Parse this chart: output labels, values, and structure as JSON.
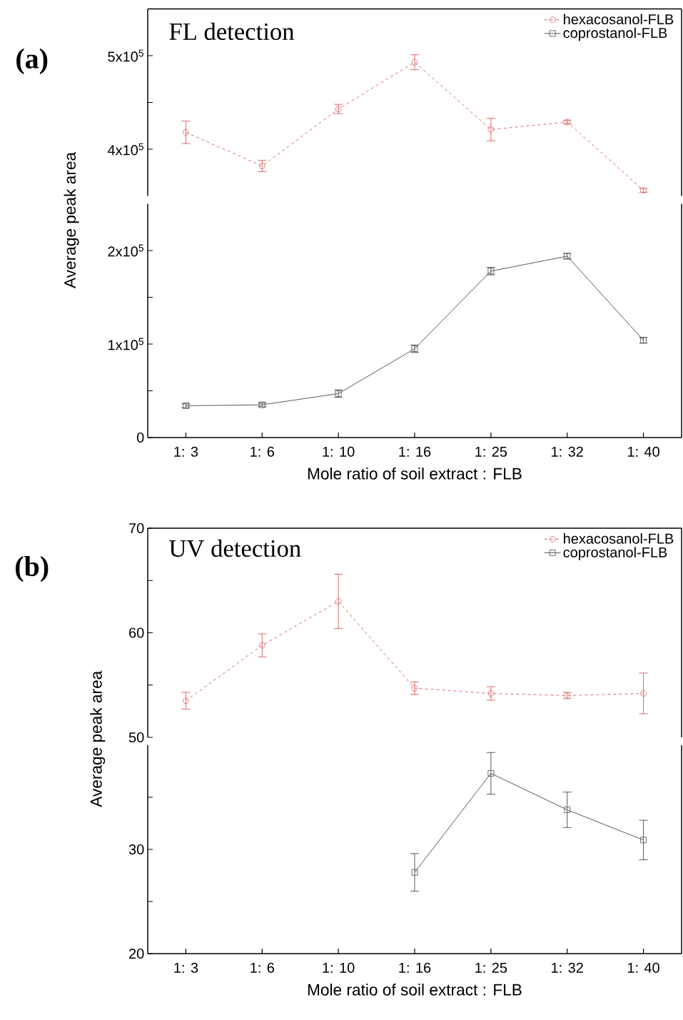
{
  "chart_data": [
    {
      "type": "line",
      "title": "FL detection",
      "annotations": [
        "(a)"
      ],
      "categories": [
        null,
        null,
        null,
        null,
        null,
        null,
        null
      ],
      "tick_labels": "y",
      "legend": "top right",
      "ylim": [
        350000,
        550000
      ],
      "yticks": [
        {
          "value": 400000,
          "label": "4x10$^{5}$"
        },
        {
          "value": 450000,
          "label": null
        },
        {
          "value": 500000,
          "label": "5x10$^{5}$"
        }
      ],
      "series": [
        {
          "name": "hexacosanol-FLB",
          "color": "#d96060",
          "marker": "circle",
          "line_style": "dashed",
          "values": [
            418000,
            382000,
            443000,
            493000,
            421000,
            429000,
            356000
          ],
          "errors": [
            12000,
            6000,
            5000,
            8000,
            12000,
            2000,
            2000
          ]
        },
        {
          "name": "coprostanol-FLB",
          "color": "#4d4d4d",
          "marker": "square",
          "line_style": "solid",
          "values": [
            null,
            null,
            null,
            null,
            null,
            null,
            null
          ]
        }
      ]
    },
    {
      "type": "line",
      "xlabel": "Mole ratio of soil extract : FLB",
      "ylabel": "Average peak area",
      "categories": [
        "1: 3",
        "1: 6",
        "1: 10",
        "1: 16",
        "1: 25",
        "1: 32",
        "1: 40"
      ],
      "ylim": [
        0,
        250000
      ],
      "yticks": [
        0,
        {
          "value": 50000,
          "label": null
        },
        {
          "value": 100000,
          "label": "1x10$^{5}$"
        },
        {
          "value": 150000,
          "label": null
        },
        {
          "value": 200000,
          "label": "2x10$^{5}$"
        }
      ],
      "series": [
        {
          "color": "#4d4d4d",
          "marker": "square",
          "line_style": "solid",
          "values": [
            34000,
            35000,
            47000,
            95000,
            178000,
            194000,
            104000
          ],
          "errors": [
            2000,
            2000,
            4000,
            4000,
            4000,
            3000,
            3000
          ]
        }
      ]
    },
    {
      "type": "line",
      "title": "UV detection",
      "annotations": [
        "(b)"
      ],
      "categories": [
        null,
        null,
        null,
        null,
        null,
        null,
        null
      ],
      "tick_labels": "y",
      "legend": "top right",
      "ylim": [
        50,
        70
      ],
      "yticks": [
        50,
        {
          "value": 55,
          "label": null
        },
        60,
        {
          "value": 65,
          "label": null
        },
        70
      ],
      "series": [
        {
          "name": "hexacosanol-FLB",
          "color": "#d96060",
          "marker": "circle",
          "line_style": "dashed",
          "values": [
            53.5,
            58.8,
            63.0,
            54.7,
            54.2,
            54.0,
            54.2
          ],
          "errors": [
            0.8,
            1.1,
            2.6,
            0.6,
            0.65,
            0.3,
            1.95
          ]
        },
        {
          "name": "coprostanol-FLB",
          "color": "#4d4d4d",
          "marker": "square",
          "line_style": "solid",
          "values": [
            null,
            null,
            null,
            null,
            null,
            null,
            null
          ]
        }
      ]
    },
    {
      "type": "line",
      "xlabel": "Mole ratio of soil extract : FLB",
      "ylabel": "Average peak area",
      "categories": [
        "1: 3",
        "1: 6",
        "1: 10",
        "1: 16",
        "1: 25",
        "1: 32",
        "1: 40"
      ],
      "ylim": [
        20,
        40
      ],
      "yticks": [
        20,
        {
          "value": 25,
          "label": null
        },
        30,
        {
          "value": 35,
          "label": null
        }
      ],
      "series": [
        {
          "color": "#4d4d4d",
          "marker": "square",
          "line_style": "solid",
          "values": [
            null,
            null,
            null,
            27.8,
            37.3,
            33.8,
            30.9
          ],
          "errors": [
            null,
            null,
            null,
            1.8,
            2.0,
            1.7,
            1.9
          ]
        }
      ]
    }
  ]
}
